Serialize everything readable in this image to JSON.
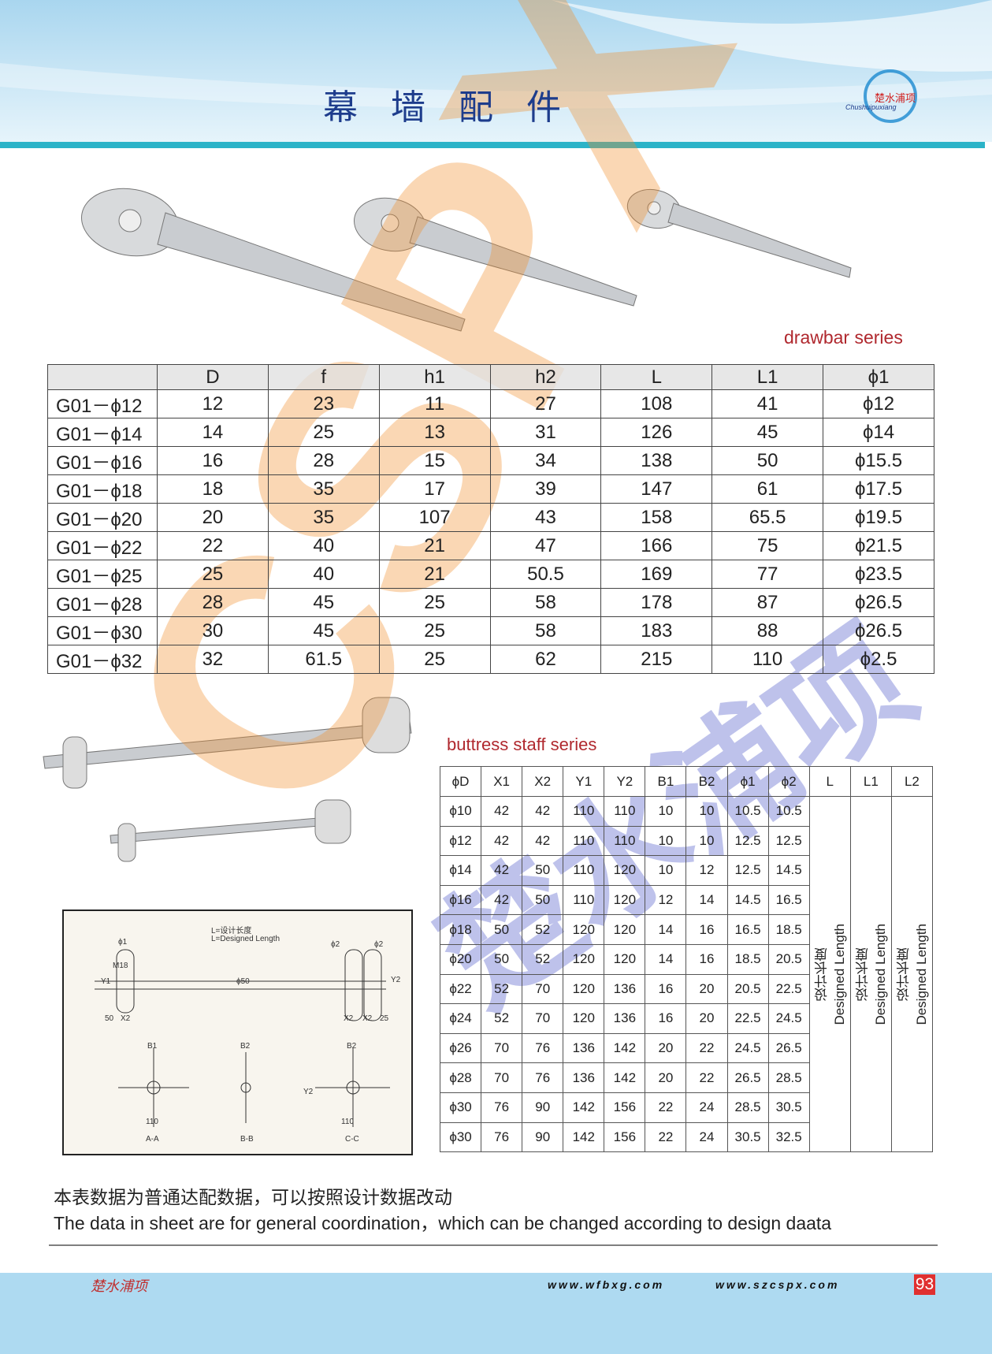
{
  "header": {
    "title": "幕墙配件",
    "logo": {
      "chinese": "楚水浦项",
      "latin": "Chushuipuxiang"
    }
  },
  "drawbar": {
    "caption": "drawbar series",
    "table": {
      "columns": [
        "",
        "D",
        "f",
        "h1",
        "h2",
        "L",
        "L1",
        "ϕ1"
      ],
      "rows": [
        [
          "G01－ϕ12",
          12,
          23,
          11,
          27,
          108,
          41,
          "ϕ12"
        ],
        [
          "G01－ϕ14",
          14,
          25,
          13,
          31,
          126,
          45,
          "ϕ14"
        ],
        [
          "G01－ϕ16",
          16,
          28,
          15,
          34,
          138,
          50,
          "ϕ15.5"
        ],
        [
          "G01－ϕ18",
          18,
          35,
          17,
          39,
          147,
          61,
          "ϕ17.5"
        ],
        [
          "G01－ϕ20",
          20,
          35,
          107,
          43,
          158,
          65.5,
          "ϕ19.5"
        ],
        [
          "G01－ϕ22",
          22,
          40,
          21,
          47,
          166,
          75,
          "ϕ21.5"
        ],
        [
          "G01－ϕ25",
          25,
          40,
          21,
          50.5,
          169,
          77,
          "ϕ23.5"
        ],
        [
          "G01－ϕ28",
          28,
          45,
          25,
          58,
          178,
          87,
          "ϕ26.5"
        ],
        [
          "G01－ϕ30",
          30,
          45,
          25,
          58,
          183,
          88,
          "ϕ26.5"
        ],
        [
          "G01－ϕ32",
          32,
          61.5,
          25,
          62,
          215,
          110,
          "ϕ2.5"
        ]
      ]
    }
  },
  "buttress": {
    "caption": "buttress staff series",
    "table": {
      "columns": [
        "ϕD",
        "X1",
        "X2",
        "Y1",
        "Y2",
        "B1",
        "B2",
        "ϕ1",
        "ϕ2",
        "L",
        "L1",
        "L2"
      ],
      "rows": [
        [
          "ϕ10",
          42,
          42,
          110,
          110,
          10,
          10,
          10.5,
          10.5
        ],
        [
          "ϕ12",
          42,
          42,
          110,
          110,
          10,
          10,
          12.5,
          12.5
        ],
        [
          "ϕ14",
          42,
          50,
          110,
          120,
          10,
          12,
          12.5,
          14.5
        ],
        [
          "ϕ16",
          42,
          50,
          110,
          120,
          12,
          14,
          14.5,
          16.5
        ],
        [
          "ϕ18",
          50,
          52,
          120,
          120,
          14,
          16,
          16.5,
          18.5
        ],
        [
          "ϕ20",
          50,
          52,
          120,
          120,
          14,
          16,
          18.5,
          20.5
        ],
        [
          "ϕ22",
          52,
          70,
          120,
          136,
          16,
          20,
          20.5,
          22.5
        ],
        [
          "ϕ24",
          52,
          70,
          120,
          136,
          16,
          20,
          22.5,
          24.5
        ],
        [
          "ϕ26",
          70,
          76,
          136,
          142,
          20,
          22,
          24.5,
          26.5
        ],
        [
          "ϕ28",
          70,
          76,
          136,
          142,
          20,
          22,
          26.5,
          28.5
        ],
        [
          "ϕ30",
          76,
          90,
          142,
          156,
          22,
          24,
          28.5,
          30.5
        ],
        [
          "ϕ30",
          76,
          90,
          142,
          156,
          22,
          24,
          30.5,
          32.5
        ]
      ],
      "merged": [
        {
          "chinese": "设计长度",
          "english": "Designed Length"
        },
        {
          "chinese": "设计长度",
          "english": "Designed Length"
        },
        {
          "chinese": "设计长度",
          "english": "Designed Length"
        }
      ]
    },
    "drawing_labels": [
      "L=设计长度",
      "L=Designed Length",
      "A-A",
      "B-B",
      "C-C",
      "50",
      "X2",
      "X2",
      "X2",
      "25",
      "110",
      "110",
      "B1",
      "B2",
      "B2",
      "Y1",
      "Y2",
      "Y2",
      "ϕ1",
      "ϕ2",
      "ϕ2",
      "M18",
      "ϕ50"
    ]
  },
  "watermark": {
    "latin": "CSPX",
    "chinese": "楚水浦项"
  },
  "notes": {
    "chinese": "本表数据为普通达配数据，可以按照设计数据改动",
    "english": "The data in sheet are for general coordination，which can be changed according to design daata"
  },
  "footer": {
    "brand": "楚水浦项",
    "site1": "www.wfbxg.com",
    "site2": "www.szcspx.com",
    "page": "93"
  }
}
